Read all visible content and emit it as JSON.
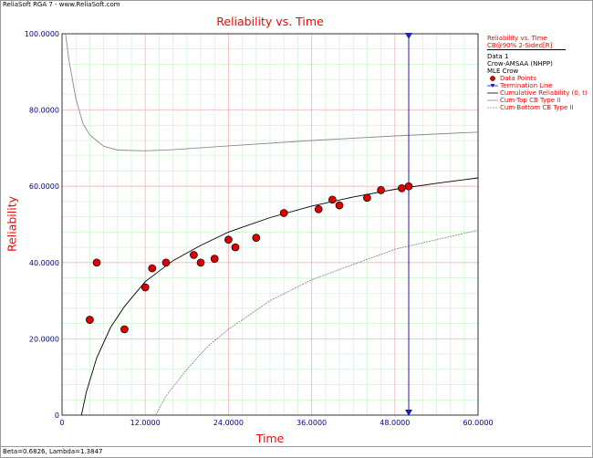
{
  "window": {
    "header": "ReliaSoft RGA 7 - www.ReliaSoft.com",
    "footer": "Beta=0.6826, Lambda=1.3847"
  },
  "legend": {
    "title": "Reliability vs. Time",
    "subtitle": "CB@90% 2-Sided[R]",
    "data_label": "Data 1",
    "model": "Crow-AMSAA (NHPP)",
    "method": "MLE Crow",
    "items": [
      {
        "label": "Data Points",
        "symbol": "circle",
        "color": "#e00000"
      },
      {
        "label": "Termination Line",
        "symbol": "triangle-line",
        "color": "#1f1fb4"
      },
      {
        "label": "Cumulative Reliability (0, t)",
        "symbol": "line",
        "color": "#000000"
      },
      {
        "label": "Cum-Top CB Type II",
        "symbol": "line",
        "color": "#8a8a8a"
      },
      {
        "label": "Cum-Bottom CB Type II",
        "symbol": "line",
        "color": "#8a8a8a"
      }
    ]
  },
  "chart_data": {
    "type": "scatter",
    "title": "Reliability vs. Time",
    "xlabel": "Time",
    "ylabel": "Reliability",
    "xlim": [
      0,
      60
    ],
    "ylim": [
      0,
      100
    ],
    "grid": true,
    "legend_position": "right",
    "x_ticks": [
      "0",
      "12.0000",
      "24.0000",
      "36.0000",
      "48.0000",
      "60.0000"
    ],
    "y_ticks": [
      "0",
      "20.0000",
      "40.0000",
      "60.0000",
      "80.0000",
      "100.0000"
    ],
    "points": {
      "name": "Data Points",
      "x": [
        4.0,
        5.0,
        9.0,
        12.0,
        13.0,
        15.0,
        19.0,
        20.0,
        22.0,
        24.0,
        25.0,
        28.0,
        32.0,
        37.0,
        39.0,
        40.0,
        44.0,
        46.0,
        49.0,
        50.0
      ],
      "y": [
        25.0,
        40.0,
        22.5,
        33.5,
        38.5,
        40.0,
        42.0,
        40.0,
        41.0,
        46.0,
        44.0,
        46.5,
        53.0,
        54.0,
        56.5,
        55.0,
        57.0,
        59.0,
        59.5,
        60.0
      ]
    },
    "termination_line": {
      "name": "Termination Line",
      "x": 50.0
    },
    "series": [
      {
        "name": "Cumulative Reliability (0, t)",
        "x": [
          2.8,
          3.5,
          5.0,
          7.0,
          9.0,
          12.0,
          16.0,
          20.0,
          24.0,
          30.0,
          36.0,
          42.0,
          48.0,
          54.0,
          60.0
        ],
        "y": [
          0.0,
          6.0,
          15.0,
          23.0,
          28.5,
          35.0,
          40.5,
          44.5,
          48.0,
          51.8,
          54.8,
          57.2,
          59.2,
          60.8,
          62.2
        ]
      },
      {
        "name": "Cum-Top CB Type II",
        "x": [
          0.5,
          1.0,
          2.0,
          3.0,
          4.0,
          6.0,
          8.0,
          12.0,
          16.0,
          24.0,
          36.0,
          48.0,
          60.0
        ],
        "y": [
          100.0,
          93.0,
          83.0,
          76.5,
          73.5,
          70.5,
          69.5,
          69.3,
          69.6,
          70.6,
          72.0,
          73.2,
          74.2
        ]
      },
      {
        "name": "Cum-Bottom CB Type II",
        "x": [
          13.5,
          15.0,
          18.0,
          21.0,
          24.0,
          30.0,
          36.0,
          42.0,
          48.0,
          54.0,
          60.0
        ],
        "y": [
          0.0,
          5.0,
          12.0,
          18.0,
          22.5,
          30.0,
          35.5,
          39.5,
          43.5,
          46.0,
          48.5
        ]
      }
    ]
  }
}
